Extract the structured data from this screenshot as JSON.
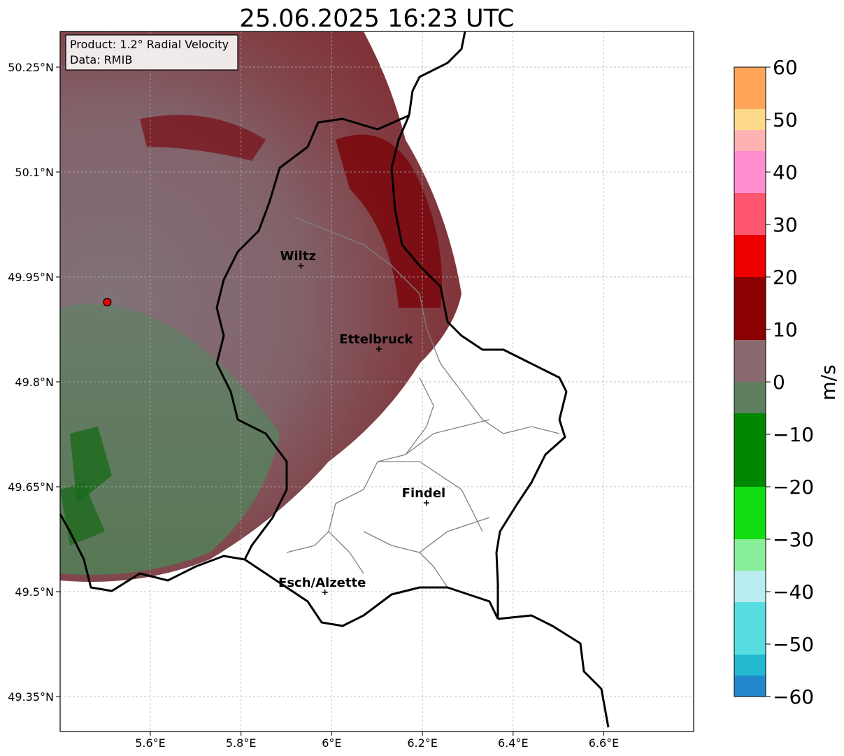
{
  "title": "25.06.2025 16:23 UTC",
  "info_box": {
    "product": "Product: 1.2° Radial Velocity",
    "data": "Data: RMIB"
  },
  "map": {
    "lon_range": [
      5.4,
      6.8
    ],
    "lat_range": [
      49.3,
      50.3
    ],
    "lon_ticks": [
      5.6,
      5.8,
      6.0,
      6.2,
      6.4,
      6.6
    ],
    "lon_tick_labels": [
      "5.6°E",
      "5.8°E",
      "6°E",
      "6.2°E",
      "6.4°E",
      "6.6°E"
    ],
    "lat_ticks": [
      50.25,
      50.1,
      49.95,
      49.8,
      49.65,
      49.5,
      49.35
    ],
    "lat_tick_labels": [
      "50.25°N",
      "50.1°N",
      "49.95°N",
      "49.8°N",
      "49.65°N",
      "49.5°N",
      "49.35°N"
    ],
    "gridlines": true,
    "radar_site": {
      "lon": 5.505,
      "lat": 49.914,
      "color": "#e30000"
    },
    "cities": [
      {
        "name": "Wiltz",
        "lon": 5.932,
        "lat": 49.966
      },
      {
        "name": "Ettelbruck",
        "lon": 6.104,
        "lat": 49.847
      },
      {
        "name": "Findel",
        "lon": 6.209,
        "lat": 49.627
      },
      {
        "name": "Esch/Alzette",
        "lon": 5.985,
        "lat": 49.499
      }
    ],
    "border_color": "#000000",
    "canton_line_color": "#808080"
  },
  "colorbar": {
    "label": "m/s",
    "min": -60,
    "max": 60,
    "tick_labels": [
      "60",
      "50",
      "40",
      "30",
      "20",
      "10",
      "0",
      "−10",
      "−20",
      "−30",
      "−40",
      "−50",
      "−60"
    ],
    "tick_values": [
      60,
      50,
      40,
      30,
      20,
      10,
      0,
      -10,
      -20,
      -30,
      -40,
      -50,
      -60
    ],
    "stops": [
      {
        "from": 52,
        "to": 60,
        "color": "#ffa55a"
      },
      {
        "from": 48,
        "to": 52,
        "color": "#ffd98a"
      },
      {
        "from": 44,
        "to": 48,
        "color": "#ffb2b2"
      },
      {
        "from": 36,
        "to": 44,
        "color": "#ff8ecf"
      },
      {
        "from": 28,
        "to": 36,
        "color": "#ff5670"
      },
      {
        "from": 20,
        "to": 28,
        "color": "#ee0000"
      },
      {
        "from": 8,
        "to": 20,
        "color": "#8b0000"
      },
      {
        "from": 0,
        "to": 8,
        "color": "#8a6a70"
      },
      {
        "from": -6,
        "to": 0,
        "color": "#5f7f5f"
      },
      {
        "from": -20,
        "to": -6,
        "color": "#008800"
      },
      {
        "from": -30,
        "to": -20,
        "color": "#11dd11"
      },
      {
        "from": -36,
        "to": -30,
        "color": "#88ee99"
      },
      {
        "from": -42,
        "to": -36,
        "color": "#b8ecf0"
      },
      {
        "from": -52,
        "to": -42,
        "color": "#55dde0"
      },
      {
        "from": -56,
        "to": -52,
        "color": "#22b8d0"
      },
      {
        "from": -60,
        "to": -56,
        "color": "#2288cc"
      }
    ]
  }
}
